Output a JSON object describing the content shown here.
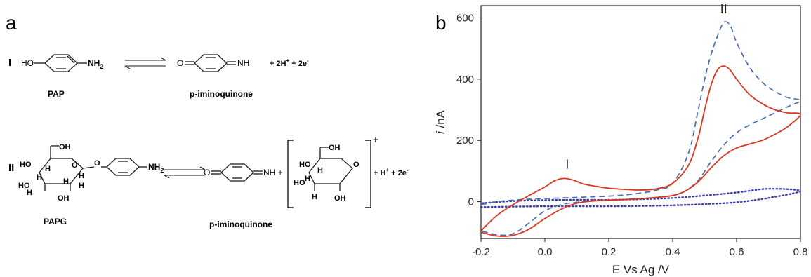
{
  "panel_a": {
    "label": "a",
    "reaction_1": {
      "numeral": "I",
      "reactant_group_left": "HO",
      "reactant_group_right": "NH",
      "reactant_subscript": "2",
      "reactant_name": "PAP",
      "product_group_left": "O",
      "product_group_right": "NH",
      "product_name": "p-iminoquinone",
      "byproducts": "+ 2H",
      "byproducts_sup": "+",
      "byproducts_2": " + 2e",
      "byproducts_2_sup": "-"
    },
    "reaction_2": {
      "numeral": "II",
      "reactant_group_right": "NH",
      "reactant_subscript": "2",
      "sugar_labels": [
        "OH",
        "HO",
        "H",
        "O",
        "H",
        "O",
        "H",
        "HO",
        "H",
        "OH",
        "H",
        "H"
      ],
      "reactant_name": "PAPG",
      "product_group_left": "O",
      "product_group_right": "NH +",
      "product_name": "p-iminoquinone",
      "sugar2_labels": [
        "OH",
        "HO",
        "H",
        "O",
        "HO",
        "H",
        "H",
        "OH"
      ],
      "bracket_charge": "+",
      "byproducts": "+ H",
      "byproducts_sup": "+",
      "byproducts_2": " + 2e",
      "byproducts_2_sup": "-"
    }
  },
  "panel_b": {
    "label": "b",
    "colors": {
      "red": "#d9361f",
      "blue_dashed": "#4a6fa6",
      "dotted": "#3b3fae",
      "axis": "#222222"
    }
  },
  "chart_data": {
    "type": "line",
    "title": "",
    "xlabel": "E Vs Ag /V",
    "ylabel_italic": "i",
    "ylabel_rest": " /nA",
    "xlim": [
      -0.2,
      0.8
    ],
    "ylim": [
      -120,
      640
    ],
    "xticks": [
      -0.2,
      0.0,
      0.2,
      0.4,
      0.6,
      0.8
    ],
    "xtick_labels": [
      "-0.2",
      "0.0",
      "0.2",
      "0.4",
      "0.6",
      "0.8"
    ],
    "yticks": [
      0,
      200,
      400,
      600
    ],
    "ytick_labels": [
      "0",
      "200",
      "400",
      "600"
    ],
    "annotations": [
      {
        "text": "I",
        "x": 0.07,
        "y": 108
      },
      {
        "text": "II",
        "x": 0.56,
        "y": 615
      }
    ],
    "series": [
      {
        "style": "solid-red",
        "x": [
          -0.2,
          -0.15,
          -0.1,
          -0.05,
          0.0,
          0.03,
          0.06,
          0.09,
          0.12,
          0.16,
          0.2,
          0.25,
          0.3,
          0.35,
          0.4,
          0.45,
          0.48,
          0.5,
          0.52,
          0.54,
          0.56,
          0.58,
          0.6,
          0.64,
          0.68,
          0.72,
          0.76,
          0.8,
          0.76,
          0.72,
          0.68,
          0.64,
          0.6,
          0.56,
          0.52,
          0.48,
          0.44,
          0.4,
          0.35,
          0.3,
          0.25,
          0.2,
          0.15,
          0.1,
          0.05,
          0.0,
          -0.05,
          -0.1,
          -0.15,
          -0.2
        ],
        "y": [
          -95,
          -45,
          -10,
          20,
          48,
          68,
          76,
          70,
          58,
          50,
          44,
          40,
          38,
          42,
          60,
          120,
          210,
          300,
          380,
          430,
          443,
          430,
          400,
          350,
          320,
          300,
          290,
          285,
          245,
          220,
          200,
          188,
          175,
          150,
          110,
          65,
          35,
          20,
          14,
          10,
          7,
          5,
          2,
          -5,
          -25,
          -55,
          -90,
          -110,
          -112,
          -100
        ]
      },
      {
        "style": "dashed-blue",
        "x": [
          -0.2,
          -0.15,
          -0.1,
          -0.05,
          0.0,
          0.05,
          0.1,
          0.15,
          0.2,
          0.25,
          0.3,
          0.35,
          0.4,
          0.45,
          0.48,
          0.5,
          0.52,
          0.54,
          0.56,
          0.58,
          0.6,
          0.64,
          0.68,
          0.72,
          0.76,
          0.8,
          0.76,
          0.72,
          0.68,
          0.64,
          0.6,
          0.56,
          0.52,
          0.48,
          0.44,
          0.4,
          0.35,
          0.3,
          0.25,
          0.2,
          0.15,
          0.1,
          0.05,
          0.0,
          -0.05,
          -0.1,
          -0.15,
          -0.2
        ],
        "y": [
          -10,
          0,
          5,
          8,
          10,
          12,
          14,
          16,
          18,
          22,
          28,
          38,
          60,
          160,
          300,
          400,
          480,
          540,
          585,
          575,
          520,
          440,
          390,
          360,
          340,
          330,
          310,
          290,
          270,
          250,
          225,
          185,
          130,
          70,
          35,
          20,
          14,
          10,
          7,
          5,
          2,
          -2,
          -10,
          -30,
          -70,
          -105,
          -108,
          -95
        ]
      },
      {
        "style": "dotted-blue",
        "x": [
          -0.2,
          -0.1,
          0.0,
          0.1,
          0.2,
          0.3,
          0.4,
          0.5,
          0.6,
          0.7,
          0.8,
          0.7,
          0.6,
          0.5,
          0.4,
          0.3,
          0.2,
          0.1,
          0.0,
          -0.1,
          -0.2
        ],
        "y": [
          -18,
          -16,
          -15,
          -15,
          -15,
          -14,
          -12,
          -8,
          -2,
          12,
          35,
          42,
          30,
          20,
          12,
          8,
          6,
          6,
          5,
          2,
          -5
        ]
      }
    ]
  }
}
